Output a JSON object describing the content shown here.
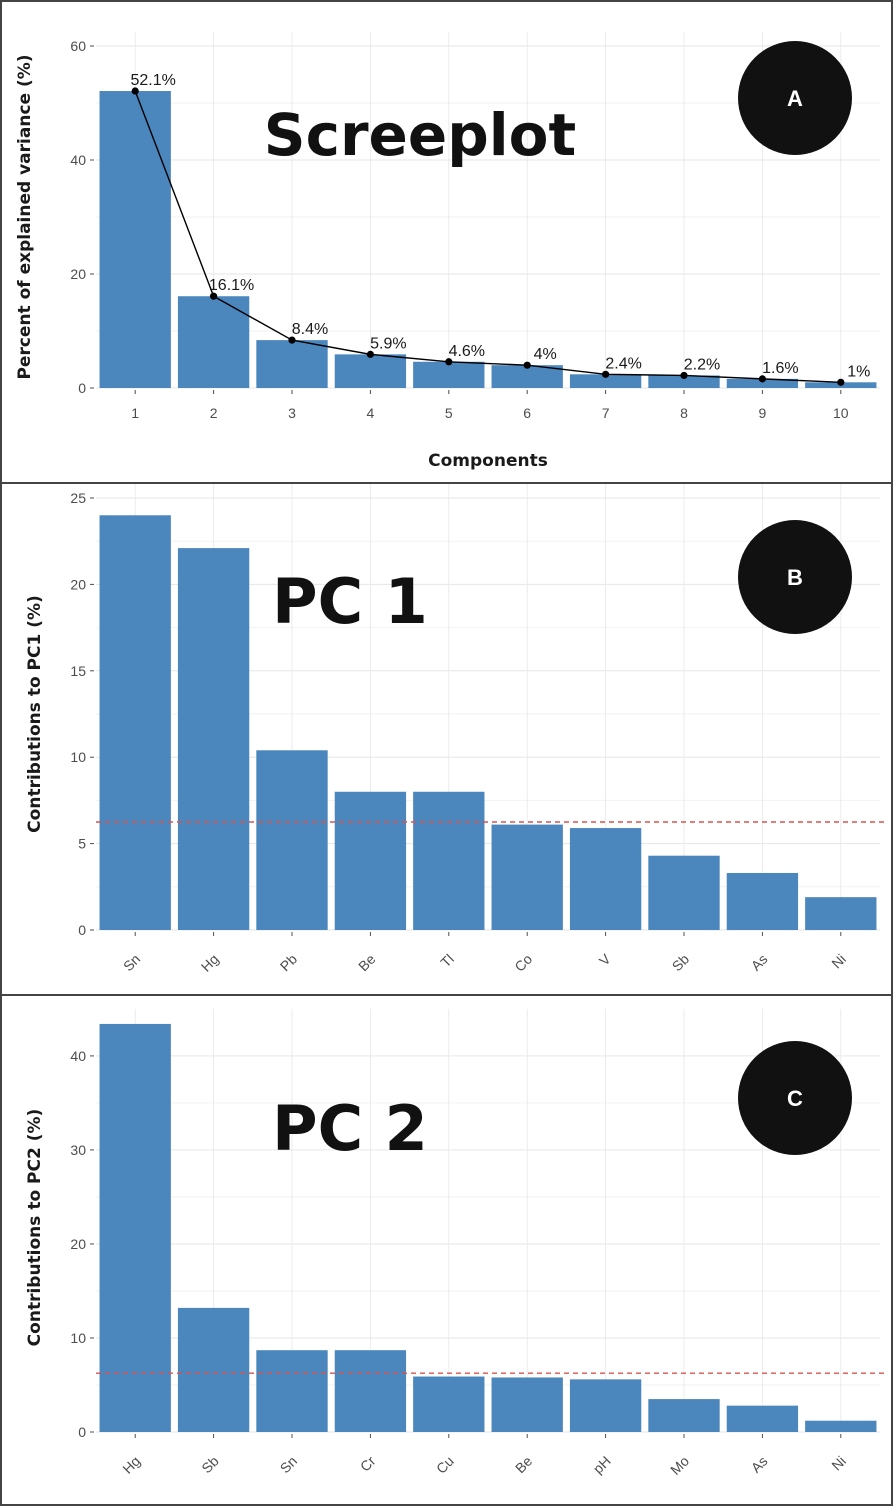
{
  "chart_data": [
    {
      "type": "bar",
      "panel_label": "A",
      "title": "Screeplot",
      "xlabel": "Components",
      "ylabel": "Percent of explained variance (%)",
      "categories": [
        "1",
        "2",
        "3",
        "4",
        "5",
        "6",
        "7",
        "8",
        "9",
        "10"
      ],
      "values": [
        52.1,
        16.1,
        8.4,
        5.9,
        4.6,
        4.0,
        2.4,
        2.2,
        1.6,
        1.0
      ],
      "data_labels": [
        "52.1%",
        "16.1%",
        "8.4%",
        "5.9%",
        "4.6%",
        "4%",
        "2.4%",
        "2.2%",
        "1.6%",
        "1%"
      ],
      "ylim": [
        0,
        60
      ],
      "yticks": [
        0,
        20,
        40,
        60
      ],
      "overlay_line": true,
      "grid": true,
      "bar_color": "#4b86bd"
    },
    {
      "type": "bar",
      "panel_label": "B",
      "title": "PC 1",
      "xlabel": "",
      "ylabel": "Contributions to PC1 (%)",
      "categories": [
        "Sn",
        "Hg",
        "Pb",
        "Be",
        "Tl",
        "Co",
        "V",
        "Sb",
        "As",
        "Ni"
      ],
      "values": [
        24.0,
        22.1,
        10.4,
        8.0,
        8.0,
        6.1,
        5.9,
        4.3,
        3.3,
        1.9
      ],
      "ylim": [
        0,
        25
      ],
      "yticks": [
        0,
        5,
        10,
        15,
        20,
        25
      ],
      "reference_line": 6.25,
      "reference_line_color": "#d9534f",
      "grid": true,
      "bar_color": "#4b86bd"
    },
    {
      "type": "bar",
      "panel_label": "C",
      "title": "PC 2",
      "xlabel": "",
      "ylabel": "Contributions to PC2 (%)",
      "categories": [
        "Hg",
        "Sb",
        "Sn",
        "Cr",
        "Cu",
        "Be",
        "pH",
        "Mo",
        "As",
        "Ni"
      ],
      "values": [
        43.4,
        13.2,
        8.7,
        8.7,
        5.9,
        5.8,
        5.6,
        3.5,
        2.8,
        1.2
      ],
      "ylim": [
        0,
        43.5
      ],
      "yticks": [
        0,
        10,
        20,
        30,
        40
      ],
      "reference_line": 6.25,
      "reference_line_color": "#d9534f",
      "grid": true,
      "bar_color": "#4b86bd"
    }
  ]
}
